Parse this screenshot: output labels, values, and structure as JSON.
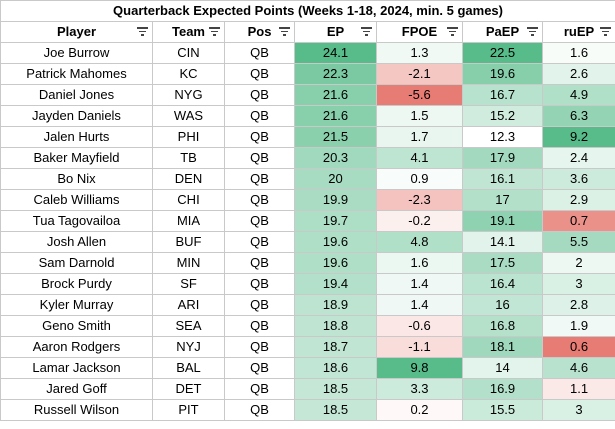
{
  "title": "Quarterback Expected Points (Weeks 1-18, 2024, min. 5 games)",
  "columns": [
    "Player",
    "Team",
    "Pos",
    "EP",
    "FPOE",
    "PaEP",
    "ruEP"
  ],
  "rows": [
    [
      "Joe Burrow",
      "CIN",
      "QB",
      "24.1",
      "1.3",
      "22.5",
      "1.6"
    ],
    [
      "Patrick Mahomes",
      "KC",
      "QB",
      "22.3",
      "-2.1",
      "19.6",
      "2.6"
    ],
    [
      "Daniel Jones",
      "NYG",
      "QB",
      "21.6",
      "-5.6",
      "16.7",
      "4.9"
    ],
    [
      "Jayden Daniels",
      "WAS",
      "QB",
      "21.6",
      "1.5",
      "15.2",
      "6.3"
    ],
    [
      "Jalen Hurts",
      "PHI",
      "QB",
      "21.5",
      "1.7",
      "12.3",
      "9.2"
    ],
    [
      "Baker Mayfield",
      "TB",
      "QB",
      "20.3",
      "4.1",
      "17.9",
      "2.4"
    ],
    [
      "Bo Nix",
      "DEN",
      "QB",
      "20",
      "0.9",
      "16.1",
      "3.6"
    ],
    [
      "Caleb Williams",
      "CHI",
      "QB",
      "19.9",
      "-2.3",
      "17",
      "2.9"
    ],
    [
      "Tua Tagovailoa",
      "MIA",
      "QB",
      "19.7",
      "-0.2",
      "19.1",
      "0.7"
    ],
    [
      "Josh Allen",
      "BUF",
      "QB",
      "19.6",
      "4.8",
      "14.1",
      "5.5"
    ],
    [
      "Sam Darnold",
      "MIN",
      "QB",
      "19.6",
      "1.6",
      "17.5",
      "2"
    ],
    [
      "Brock Purdy",
      "SF",
      "QB",
      "19.4",
      "1.4",
      "16.4",
      "3"
    ],
    [
      "Kyler Murray",
      "ARI",
      "QB",
      "18.9",
      "1.4",
      "16",
      "2.8"
    ],
    [
      "Geno Smith",
      "SEA",
      "QB",
      "18.8",
      "-0.6",
      "16.8",
      "1.9"
    ],
    [
      "Aaron Rodgers",
      "NYJ",
      "QB",
      "18.7",
      "-1.1",
      "18.1",
      "0.6"
    ],
    [
      "Lamar Jackson",
      "BAL",
      "QB",
      "18.6",
      "9.8",
      "14",
      "4.6"
    ],
    [
      "Jared Goff",
      "DET",
      "QB",
      "18.5",
      "3.3",
      "16.9",
      "1.1"
    ],
    [
      "Russell Wilson",
      "PIT",
      "QB",
      "18.5",
      "0.2",
      "15.5",
      "3"
    ]
  ],
  "icons": {
    "filter": "filter-icon"
  },
  "colors": {
    "green_dark": "#57bb8a",
    "white": "#ffffff",
    "red": "#e67c73",
    "grid": "#c9c9c9"
  }
}
